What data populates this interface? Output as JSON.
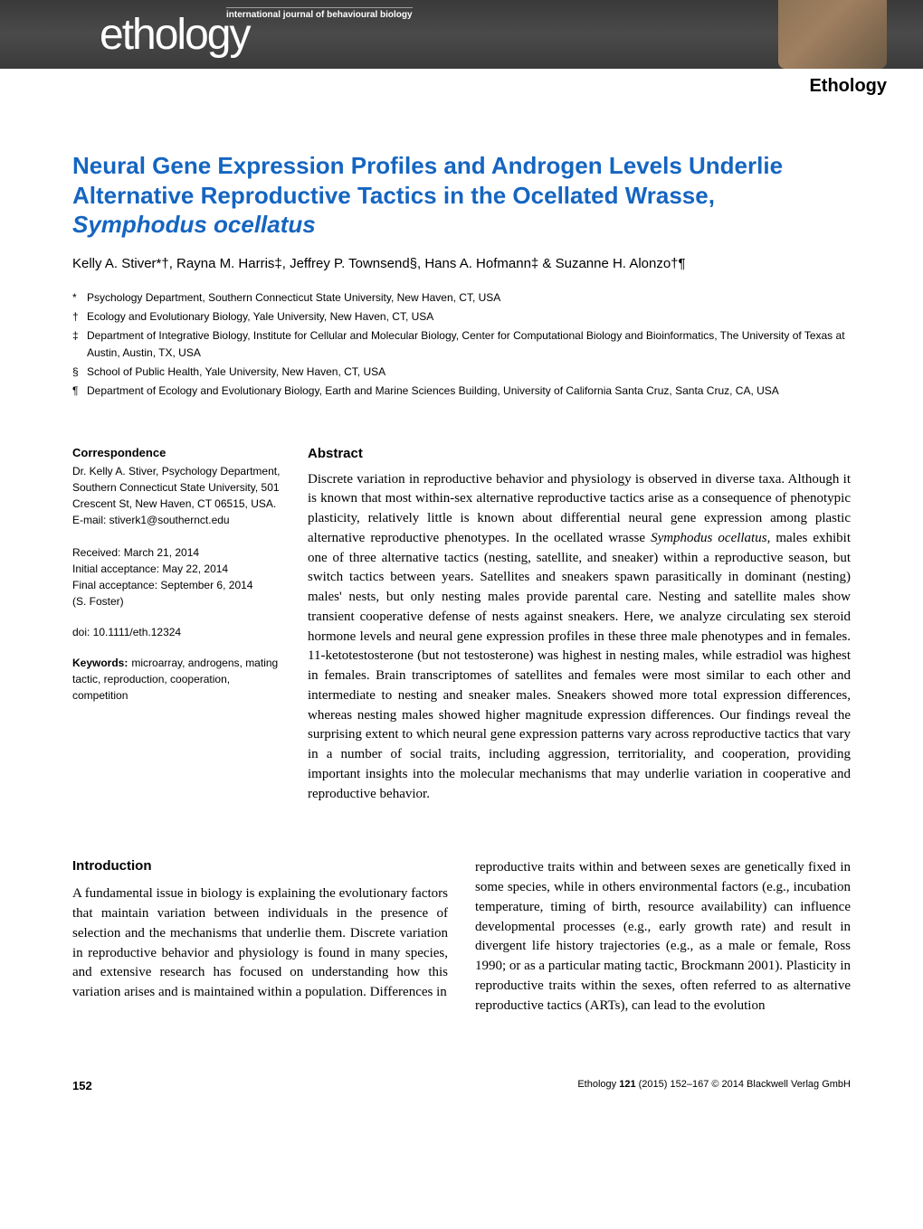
{
  "banner": {
    "logo_text": "ethology",
    "subtitle": "international journal of behavioural biology",
    "journal_name": "Ethology"
  },
  "article": {
    "title_line1": "Neural Gene Expression Profiles and Androgen Levels Underlie",
    "title_line2": "Alternative Reproductive Tactics in the Ocellated Wrasse,",
    "title_species": "Symphodus ocellatus",
    "authors": "Kelly A. Stiver*†, Rayna M. Harris‡, Jeffrey P. Townsend§, Hans A. Hofmann‡ & Suzanne H. Alonzo†¶"
  },
  "affiliations": [
    {
      "symbol": "*",
      "text": "Psychology Department, Southern Connecticut State University, New Haven, CT, USA"
    },
    {
      "symbol": "†",
      "text": "Ecology and Evolutionary Biology, Yale University, New Haven, CT, USA"
    },
    {
      "symbol": "‡",
      "text": "Department of Integrative Biology, Institute for Cellular and Molecular Biology, Center for Computational Biology and Bioinformatics, The University of Texas at Austin, Austin, TX, USA"
    },
    {
      "symbol": "§",
      "text": "School of Public Health, Yale University, New Haven, CT, USA"
    },
    {
      "symbol": "¶",
      "text": "Department of Ecology and Evolutionary Biology, Earth and Marine Sciences Building, University of California Santa Cruz, Santa Cruz, CA, USA"
    }
  ],
  "correspondence": {
    "heading": "Correspondence",
    "body": "Dr. Kelly A. Stiver, Psychology Department, Southern Connecticut State University, 501 Crescent St, New Haven, CT 06515, USA.",
    "email": "E-mail: stiverk1@southernct.edu"
  },
  "dates": {
    "received": "Received: March 21, 2014",
    "initial": "Initial acceptance: May 22, 2014",
    "final": "Final acceptance: September 6, 2014",
    "editor": "(S. Foster)"
  },
  "doi": "doi: 10.1111/eth.12324",
  "keywords": {
    "label": "Keywords:",
    "text": "microarray, androgens, mating tactic, reproduction, cooperation, competition"
  },
  "abstract": {
    "heading": "Abstract",
    "body_pre": "Discrete variation in reproductive behavior and physiology is observed in diverse taxa. Although it is known that most within-sex alternative reproductive tactics arise as a consequence of phenotypic plasticity, relatively little is known about differential neural gene expression among plastic alternative reproductive phenotypes. In the ocellated wrasse ",
    "species": "Symphodus ocellatus",
    "body_post": ", males exhibit one of three alternative tactics (nesting, satellite, and sneaker) within a reproductive season, but switch tactics between years. Satellites and sneakers spawn parasitically in dominant (nesting) males' nests, but only nesting males provide parental care. Nesting and satellite males show transient cooperative defense of nests against sneakers. Here, we analyze circulating sex steroid hormone levels and neural gene expression profiles in these three male phenotypes and in females. 11-ketotestosterone (but not testosterone) was highest in nesting males, while estradiol was highest in females. Brain transcriptomes of satellites and females were most similar to each other and intermediate to nesting and sneaker males. Sneakers showed more total expression differences, whereas nesting males showed higher magnitude expression differences. Our findings reveal the surprising extent to which neural gene expression patterns vary across reproductive tactics that vary in a number of social traits, including aggression, territoriality, and cooperation, providing important insights into the molecular mechanisms that may underlie variation in cooperative and reproductive behavior."
  },
  "introduction": {
    "heading": "Introduction",
    "col1": "A fundamental issue in biology is explaining the evolutionary factors that maintain variation between individuals in the presence of selection and the mechanisms that underlie them. Discrete variation in reproductive behavior and physiology is found in many species, and extensive research has focused on understanding how this variation arises and is maintained within a population. Differences in",
    "col2": "reproductive traits within and between sexes are genetically fixed in some species, while in others environmental factors (e.g., incubation temperature, timing of birth, resource availability) can influence developmental processes (e.g., early growth rate) and result in divergent life history trajectories (e.g., as a male or female, Ross 1990; or as a particular mating tactic, Brockmann 2001). Plasticity in reproductive traits within the sexes, often referred to as alternative reproductive tactics (ARTs), can lead to the evolution"
  },
  "footer": {
    "page": "152",
    "copyright_pre": "Ethology ",
    "volume": "121",
    "copyright_post": " (2015) 152–167 © 2014 Blackwell Verlag GmbH"
  },
  "colors": {
    "title_blue": "#1565c0",
    "banner_bg": "#3a3a3a",
    "text": "#000000",
    "background": "#ffffff"
  },
  "typography": {
    "title_fontsize": 26,
    "authors_fontsize": 15,
    "body_fontsize": 15,
    "sidebar_fontsize": 12,
    "affiliation_fontsize": 12
  }
}
